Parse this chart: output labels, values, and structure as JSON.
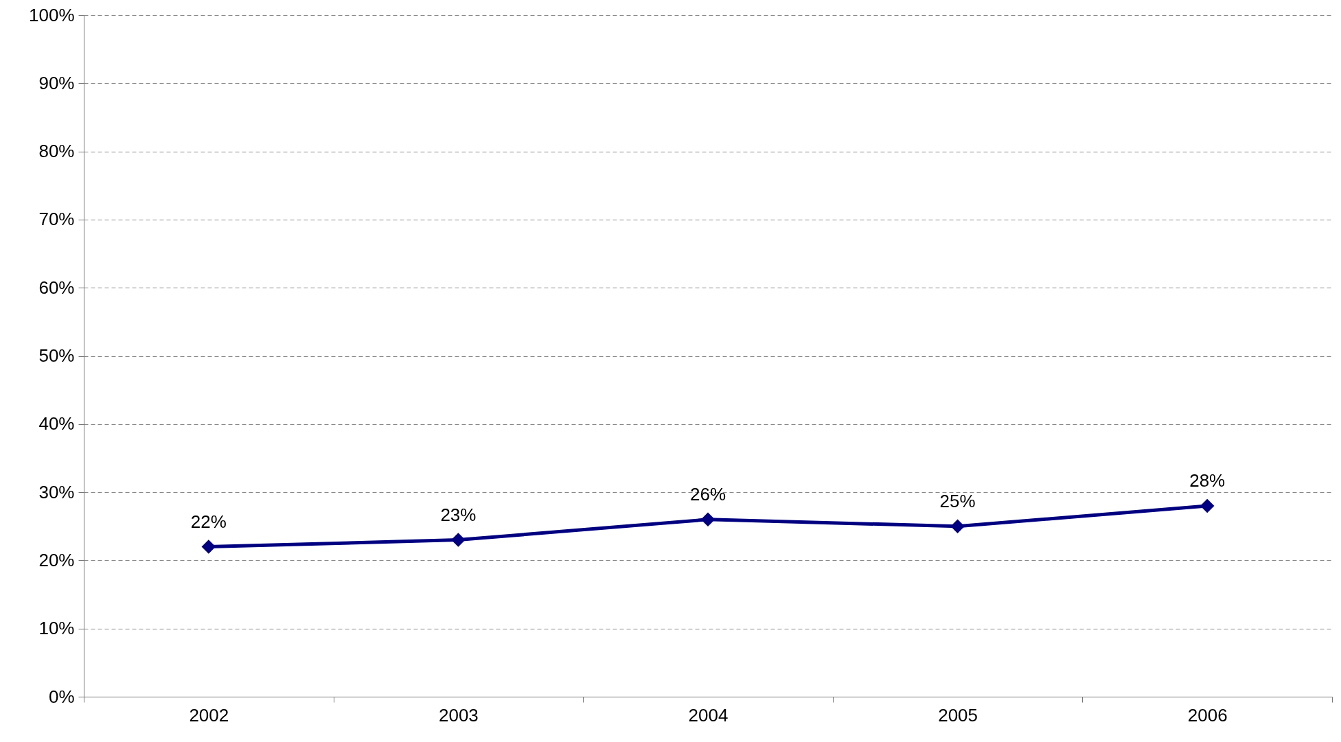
{
  "chart_data": {
    "type": "line",
    "categories": [
      "2002",
      "2003",
      "2004",
      "2005",
      "2006"
    ],
    "series": [
      {
        "color": "#000080",
        "values": [
          22,
          23,
          26,
          25,
          28
        ]
      }
    ],
    "ylim": [
      0,
      100
    ],
    "yticks": [
      {
        "value": 0,
        "label": "0%"
      },
      {
        "value": 10,
        "label": "10%"
      },
      {
        "value": 20,
        "label": "20%"
      },
      {
        "value": 30,
        "label": "30%"
      },
      {
        "value": 40,
        "label": "40%"
      },
      {
        "value": 50,
        "label": "50%"
      },
      {
        "value": 60,
        "label": "60%"
      },
      {
        "value": 70,
        "label": "70%"
      },
      {
        "value": 80,
        "label": "80%"
      },
      {
        "value": 90,
        "label": "90%"
      },
      {
        "value": 100,
        "label": "100%"
      }
    ],
    "value_labels": [
      "22%",
      "23%",
      "26%",
      "25%",
      "28%"
    ],
    "grid": "y",
    "marker": "diamond",
    "line_style": "solid"
  }
}
